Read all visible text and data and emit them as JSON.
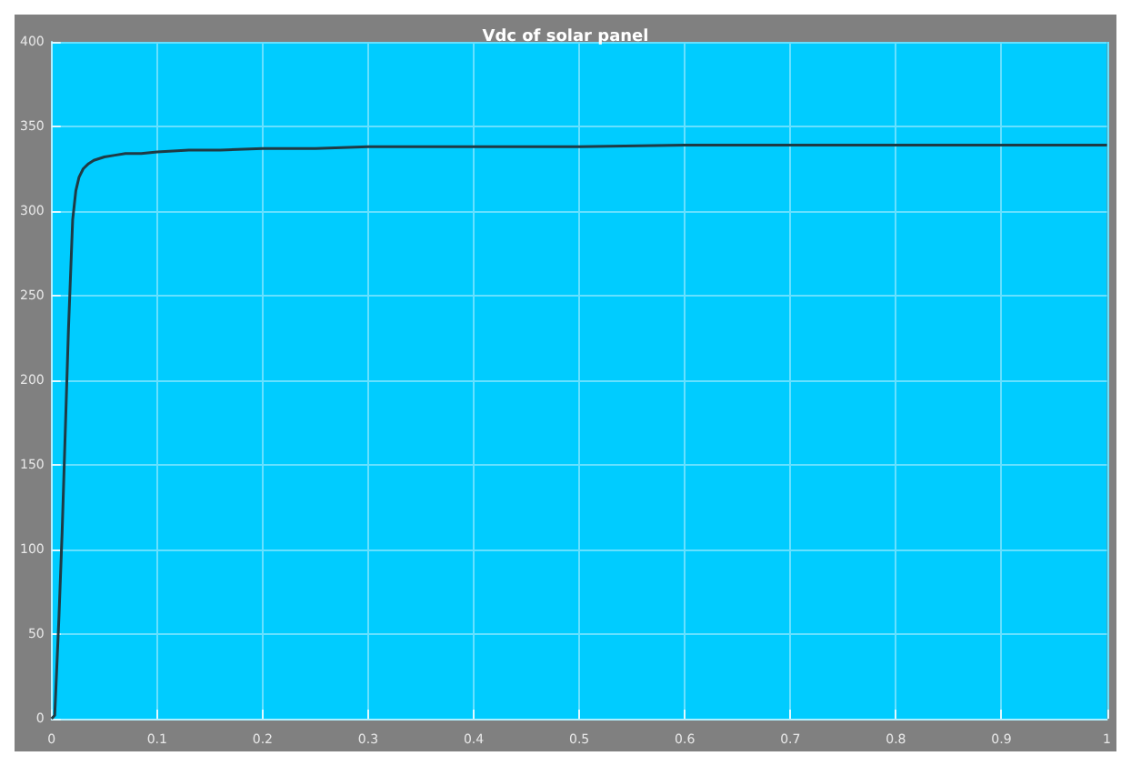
{
  "chart_data": {
    "type": "line",
    "title": "Vdc of solar panel",
    "x": [
      0,
      0.003,
      0.007,
      0.01,
      0.013,
      0.016,
      0.02,
      0.023,
      0.026,
      0.03,
      0.035,
      0.04,
      0.05,
      0.06,
      0.07,
      0.085,
      0.1,
      0.13,
      0.16,
      0.2,
      0.25,
      0.3,
      0.4,
      0.5,
      0.6,
      0.7,
      0.8,
      0.9,
      1
    ],
    "series": [
      {
        "color": "#1f3a44",
        "values": [
          0,
          2,
          60,
          110,
          170,
          230,
          295,
          312,
          320,
          325,
          328,
          330,
          332,
          333,
          334,
          334,
          335,
          336,
          336,
          337,
          337,
          338,
          338,
          338,
          339,
          339,
          339,
          339,
          339
        ]
      }
    ],
    "xlim": [
      0,
      1
    ],
    "xticks": [
      0,
      0.1,
      0.2,
      0.3,
      0.4,
      0.5,
      0.6,
      0.7,
      0.8,
      0.9,
      1
    ],
    "ylim": [
      0,
      400
    ],
    "yticks": [
      0,
      50,
      100,
      150,
      200,
      250,
      300,
      350,
      400
    ],
    "grid": true,
    "marker": "none",
    "line_style": "solid"
  }
}
